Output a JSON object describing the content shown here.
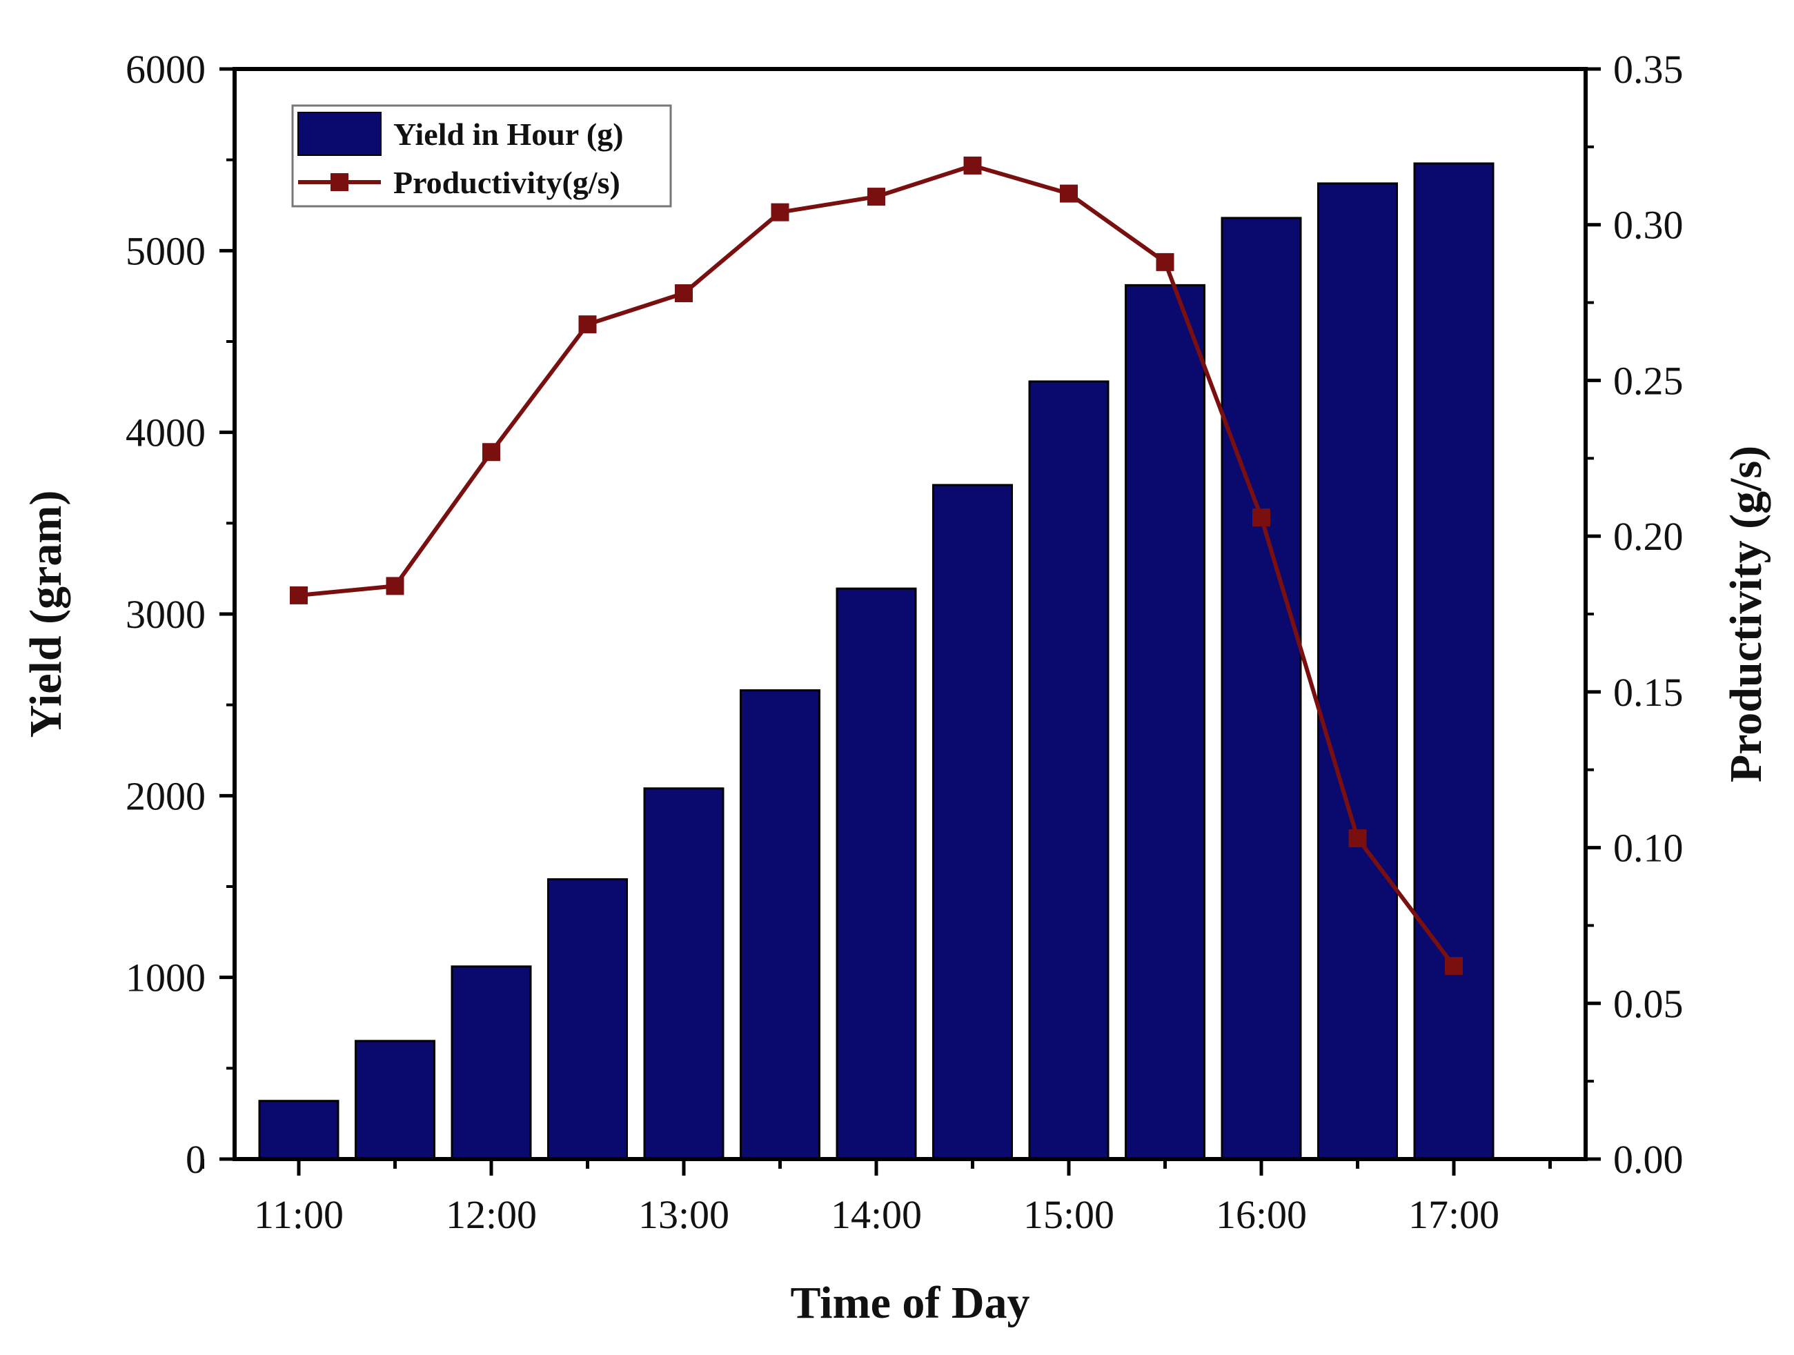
{
  "chart_data": {
    "type": "bar+line",
    "categories": [
      "11:00",
      "11:30",
      "12:00",
      "12:30",
      "13:00",
      "13:30",
      "14:00",
      "14:30",
      "15:00",
      "15:30",
      "16:00",
      "16:30",
      "17:00"
    ],
    "x_tick_labels": [
      "11:00",
      "12:00",
      "13:00",
      "14:00",
      "15:00",
      "16:00",
      "17:00"
    ],
    "xlabel": "Time of Day",
    "ylabel_left": "Yield (gram)",
    "ylabel_right": "Productivity (g/s)",
    "ylim_left": [
      0,
      6000
    ],
    "ylim_right": [
      0,
      0.35
    ],
    "y_ticks_left": [
      "0",
      "1000",
      "2000",
      "3000",
      "4000",
      "5000",
      "6000"
    ],
    "y_ticks_right": [
      "0.00",
      "0.05",
      "0.10",
      "0.15",
      "0.20",
      "0.25",
      "0.30",
      "0.35"
    ],
    "grid": false,
    "legend_position": "top-left",
    "series": [
      {
        "name": "Yield in Hour (g)",
        "type": "bar",
        "axis": "left",
        "color": "#0a0a6e",
        "values": [
          320,
          650,
          1060,
          1540,
          2040,
          2580,
          3140,
          3710,
          4280,
          4810,
          5180,
          5370,
          5480
        ]
      },
      {
        "name": "Productivity(g/s)",
        "type": "line",
        "axis": "right",
        "color": "#7a0f10",
        "values": [
          0.181,
          0.184,
          0.227,
          0.268,
          0.278,
          0.304,
          0.309,
          0.319,
          0.31,
          0.288,
          0.206,
          0.103,
          0.062
        ]
      }
    ]
  }
}
